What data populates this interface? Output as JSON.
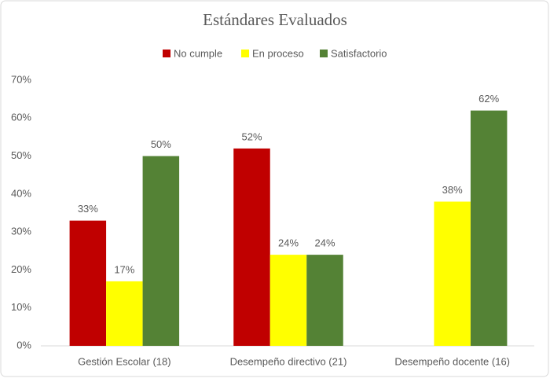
{
  "chart_data": {
    "type": "bar",
    "title": "Estándares  Evaluados",
    "categories": [
      "Gestión Escolar (18)",
      "Desempeño directivo (21)",
      "Desempeño docente (16)"
    ],
    "series": [
      {
        "name": "No cumple",
        "color": "#c00000",
        "values": [
          33,
          52,
          null
        ],
        "value_labels": [
          "33%",
          "52%",
          null
        ]
      },
      {
        "name": "En proceso",
        "color": "#ffff00",
        "values": [
          17,
          24,
          38
        ],
        "value_labels": [
          "17%",
          "24%",
          "38%"
        ]
      },
      {
        "name": "Satisfactorio",
        "color": "#548235",
        "values": [
          50,
          24,
          62
        ],
        "value_labels": [
          "50%",
          "24%",
          "62%"
        ]
      }
    ],
    "ylim": [
      0,
      70
    ],
    "yticks": [
      {
        "value": 0,
        "label": "0%"
      },
      {
        "value": 10,
        "label": "10%"
      },
      {
        "value": 20,
        "label": "20%"
      },
      {
        "value": 30,
        "label": "30%"
      },
      {
        "value": 40,
        "label": "40%"
      },
      {
        "value": 50,
        "label": "50%"
      },
      {
        "value": 60,
        "label": "60%"
      },
      {
        "value": 70,
        "label": "70%"
      }
    ],
    "grid": false,
    "legend": "top"
  }
}
